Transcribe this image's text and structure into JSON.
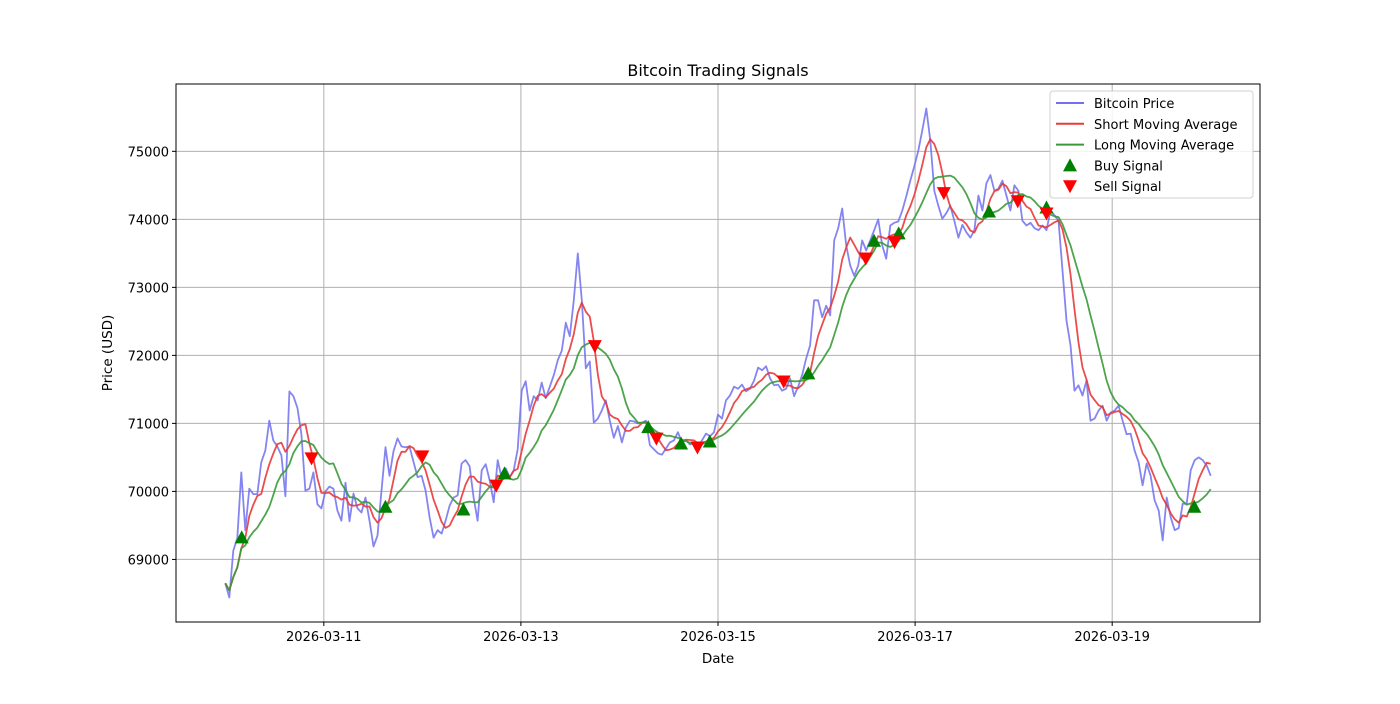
{
  "chart_data": {
    "type": "line",
    "title": "Bitcoin Trading Signals",
    "xlabel": "Date",
    "ylabel": "Price (USD)",
    "x_start": "2026-03-10 00:00",
    "x_end": "2026-03-20 00:00",
    "xlim": [
      "2026-03-09 12:00",
      "2026-03-20 12:00"
    ],
    "ylim": [
      68080,
      75990
    ],
    "grid": true,
    "legend_placement": "top-right",
    "x_ticks": [
      "2026-03-11",
      "2026-03-13",
      "2026-03-15",
      "2026-03-17",
      "2026-03-19"
    ],
    "y_ticks": [
      69000,
      70000,
      71000,
      72000,
      73000,
      74000,
      75000
    ],
    "series": [
      {
        "name": "Bitcoin Price",
        "color": "#7070f0",
        "values": [
          68650,
          68440,
          69130,
          69310,
          70280,
          69430,
          70040,
          69960,
          69960,
          70430,
          70600,
          71040,
          70750,
          70660,
          70530,
          69930,
          71470,
          71400,
          71230,
          70840,
          70010,
          70040,
          70280,
          69810,
          69750,
          70000,
          70070,
          70040,
          69720,
          69570,
          70130,
          69560,
          69970,
          69750,
          69690,
          69910,
          69570,
          69190,
          69350,
          70010,
          70650,
          70230,
          70590,
          70780,
          70660,
          70650,
          70660,
          70430,
          70210,
          70230,
          70010,
          69620,
          69320,
          69430,
          69380,
          69570,
          69790,
          69910,
          69940,
          70410,
          70460,
          70370,
          69910,
          69570,
          70310,
          70400,
          70160,
          69840,
          70460,
          70190,
          70340,
          70210,
          70310,
          70620,
          71480,
          71620,
          71190,
          71400,
          71340,
          71600,
          71370,
          71540,
          71710,
          71930,
          72070,
          72480,
          72280,
          72810,
          73500,
          72810,
          71810,
          71910,
          71010,
          71070,
          71190,
          71340,
          71040,
          70790,
          70960,
          70720,
          70940,
          71040,
          71030,
          71000,
          71010,
          71040,
          70680,
          70620,
          70560,
          70540,
          70630,
          70720,
          70750,
          70870,
          70720,
          70750,
          70690,
          70720,
          70660,
          70750,
          70850,
          70810,
          70870,
          71130,
          71070,
          71340,
          71410,
          71540,
          71510,
          71570,
          71470,
          71510,
          71630,
          71820,
          71780,
          71840,
          71660,
          71560,
          71570,
          71480,
          71510,
          71660,
          71400,
          71540,
          71710,
          71950,
          72150,
          72810,
          72810,
          72560,
          72730,
          72590,
          73690,
          73870,
          74160,
          73620,
          73320,
          73170,
          73320,
          73690,
          73540,
          73690,
          73840,
          74000,
          73620,
          73420,
          73910,
          73950,
          73970,
          74130,
          74340,
          74570,
          74780,
          75010,
          75310,
          75630,
          75160,
          74420,
          74200,
          74010,
          74090,
          74200,
          73980,
          73730,
          73920,
          73810,
          73730,
          73840,
          74350,
          74130,
          74530,
          74650,
          74420,
          74450,
          74570,
          74350,
          74130,
          74500,
          74420,
          73980,
          73910,
          73950,
          73870,
          73840,
          73910,
          73840,
          74130,
          74060,
          73980,
          73250,
          72510,
          72150,
          71480,
          71560,
          71410,
          71630,
          71040,
          71070,
          71190,
          71260,
          71040,
          71160,
          71190,
          71260,
          71040,
          70840,
          70850,
          70600,
          70430,
          70090,
          70410,
          70230,
          69870,
          69720,
          69280,
          69910,
          69620,
          69430,
          69460,
          69820,
          69820,
          70310,
          70460,
          70500,
          70460,
          70380,
          70230
        ]
      },
      {
        "name": "Short Moving Average",
        "color": "#e83a3a",
        "window": 5
      },
      {
        "name": "Long Moving Average",
        "color": "#3a9a3a",
        "window": 12
      }
    ],
    "buy_signals": {
      "name": "Buy Signal",
      "color": "#008000",
      "points": [
        {
          "time": "2026-03-10 04:00",
          "price": 69310
        },
        {
          "time": "2026-03-11 15:00",
          "price": 69760
        },
        {
          "time": "2026-03-12 10:00",
          "price": 69720
        },
        {
          "time": "2026-03-12 20:00",
          "price": 70250
        },
        {
          "time": "2026-03-14 07:00",
          "price": 70930
        },
        {
          "time": "2026-03-14 15:00",
          "price": 70690
        },
        {
          "time": "2026-03-14 22:00",
          "price": 70720
        },
        {
          "time": "2026-03-15 22:00",
          "price": 71720
        },
        {
          "time": "2026-03-16 14:00",
          "price": 73670
        },
        {
          "time": "2026-03-16 20:00",
          "price": 73780
        },
        {
          "time": "2026-03-17 18:00",
          "price": 74100
        },
        {
          "time": "2026-03-18 08:00",
          "price": 74160
        },
        {
          "time": "2026-03-19 20:00",
          "price": 69760
        }
      ]
    },
    "sell_signals": {
      "name": "Sell Signal",
      "color": "#ff0000",
      "points": [
        {
          "time": "2026-03-10 21:00",
          "price": 70500
        },
        {
          "time": "2026-03-12 00:00",
          "price": 70530
        },
        {
          "time": "2026-03-12 18:00",
          "price": 70100
        },
        {
          "time": "2026-03-13 18:00",
          "price": 72150
        },
        {
          "time": "2026-03-14 09:00",
          "price": 70790
        },
        {
          "time": "2026-03-14 19:00",
          "price": 70660
        },
        {
          "time": "2026-03-15 16:00",
          "price": 71630
        },
        {
          "time": "2026-03-16 12:00",
          "price": 73440
        },
        {
          "time": "2026-03-16 19:00",
          "price": 73680
        },
        {
          "time": "2026-03-17 07:00",
          "price": 74400
        },
        {
          "time": "2026-03-18 01:00",
          "price": 74280
        },
        {
          "time": "2026-03-18 08:00",
          "price": 74100
        }
      ]
    }
  }
}
